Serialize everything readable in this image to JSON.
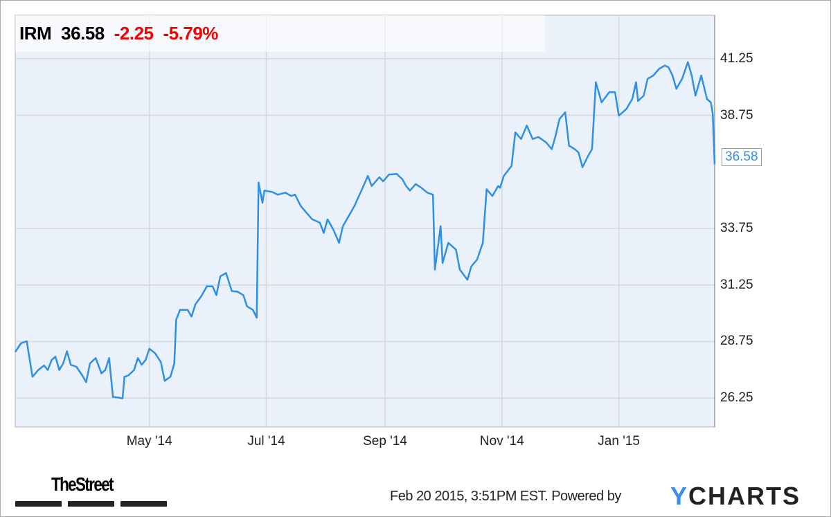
{
  "header": {
    "ticker": "IRM",
    "price": "36.58",
    "change": "-2.25",
    "change_pct": "-5.79%"
  },
  "footer": {
    "timestamp": "Feb 20 2015, 3:51PM EST.",
    "powered_by": "Powered by",
    "brand_logo": "YCHARTS",
    "publisher_logo": "TheStreet"
  },
  "colors": {
    "line": "#2d8fe6",
    "negative": "#f40000",
    "plot_bg": "#eaf1fb"
  },
  "chart_data": {
    "type": "line",
    "title": "",
    "xlabel": "",
    "ylabel": "",
    "grid": true,
    "xlim": [
      "2014-02-20",
      "2015-02-20"
    ],
    "ylim": [
      24.97,
      43.17
    ],
    "x_ticks": [
      {
        "date": "2014-05-01",
        "label": "May '14"
      },
      {
        "date": "2014-07-01",
        "label": "Jul '14"
      },
      {
        "date": "2014-09-01",
        "label": "Sep '14"
      },
      {
        "date": "2014-11-01",
        "label": "Nov '14"
      },
      {
        "date": "2015-01-01",
        "label": "Jan '15"
      }
    ],
    "y_ticks": [
      "41.25",
      "38.75",
      "33.75",
      "31.25",
      "28.75",
      "26.25"
    ],
    "last_value_label": "36.58",
    "series": [
      {
        "points": [
          [
            "2014-02-20",
            28.29
          ],
          [
            "2014-02-23",
            28.67
          ],
          [
            "2014-02-26",
            28.76
          ],
          [
            "2014-03-01",
            27.19
          ],
          [
            "2014-03-04",
            27.49
          ],
          [
            "2014-03-07",
            27.69
          ],
          [
            "2014-03-09",
            27.49
          ],
          [
            "2014-03-11",
            27.93
          ],
          [
            "2014-03-13",
            28.08
          ],
          [
            "2014-03-15",
            27.49
          ],
          [
            "2014-03-17",
            27.78
          ],
          [
            "2014-03-19",
            28.32
          ],
          [
            "2014-03-21",
            27.72
          ],
          [
            "2014-03-24",
            27.63
          ],
          [
            "2014-03-27",
            27.25
          ],
          [
            "2014-03-29",
            26.95
          ],
          [
            "2014-03-31",
            27.78
          ],
          [
            "2014-04-03",
            28.02
          ],
          [
            "2014-04-06",
            27.34
          ],
          [
            "2014-04-08",
            27.49
          ],
          [
            "2014-04-10",
            28.02
          ],
          [
            "2014-04-12",
            26.3
          ],
          [
            "2014-04-15",
            26.27
          ],
          [
            "2014-04-17",
            26.24
          ],
          [
            "2014-04-18",
            27.19
          ],
          [
            "2014-04-20",
            27.25
          ],
          [
            "2014-04-23",
            27.49
          ],
          [
            "2014-04-25",
            28.02
          ],
          [
            "2014-04-27",
            27.72
          ],
          [
            "2014-04-29",
            27.93
          ],
          [
            "2014-05-01",
            28.43
          ],
          [
            "2014-05-04",
            28.23
          ],
          [
            "2014-05-07",
            27.84
          ],
          [
            "2014-05-09",
            27.01
          ],
          [
            "2014-05-12",
            27.19
          ],
          [
            "2014-05-14",
            27.78
          ],
          [
            "2014-05-15",
            29.71
          ],
          [
            "2014-05-17",
            30.15
          ],
          [
            "2014-05-21",
            30.15
          ],
          [
            "2014-05-23",
            29.85
          ],
          [
            "2014-05-25",
            30.39
          ],
          [
            "2014-05-28",
            30.74
          ],
          [
            "2014-05-31",
            31.19
          ],
          [
            "2014-06-03",
            31.19
          ],
          [
            "2014-06-05",
            30.8
          ],
          [
            "2014-06-07",
            31.63
          ],
          [
            "2014-06-10",
            31.78
          ],
          [
            "2014-06-13",
            30.98
          ],
          [
            "2014-06-16",
            30.95
          ],
          [
            "2014-06-19",
            30.8
          ],
          [
            "2014-06-21",
            30.3
          ],
          [
            "2014-06-24",
            30.15
          ],
          [
            "2014-06-26",
            29.8
          ],
          [
            "2014-06-27",
            35.77
          ],
          [
            "2014-06-29",
            34.88
          ],
          [
            "2014-06-30",
            35.42
          ],
          [
            "2014-07-04",
            35.36
          ],
          [
            "2014-07-07",
            35.24
          ],
          [
            "2014-07-11",
            35.33
          ],
          [
            "2014-07-14",
            35.18
          ],
          [
            "2014-07-16",
            35.24
          ],
          [
            "2014-07-19",
            34.74
          ],
          [
            "2014-07-22",
            34.44
          ],
          [
            "2014-07-25",
            34.15
          ],
          [
            "2014-07-29",
            34.0
          ],
          [
            "2014-07-31",
            33.55
          ],
          [
            "2014-08-02",
            34.15
          ],
          [
            "2014-08-05",
            33.7
          ],
          [
            "2014-08-08",
            33.11
          ],
          [
            "2014-08-10",
            33.85
          ],
          [
            "2014-08-13",
            34.29
          ],
          [
            "2014-08-16",
            34.74
          ],
          [
            "2014-08-20",
            35.48
          ],
          [
            "2014-08-23",
            36.07
          ],
          [
            "2014-08-25",
            35.62
          ],
          [
            "2014-08-29",
            36.01
          ],
          [
            "2014-08-31",
            35.83
          ],
          [
            "2014-09-03",
            36.13
          ],
          [
            "2014-09-07",
            36.16
          ],
          [
            "2014-09-10",
            35.92
          ],
          [
            "2014-09-12",
            35.62
          ],
          [
            "2014-09-14",
            35.42
          ],
          [
            "2014-09-17",
            35.71
          ],
          [
            "2014-09-20",
            35.54
          ],
          [
            "2014-09-23",
            35.33
          ],
          [
            "2014-09-26",
            35.24
          ],
          [
            "2014-09-27",
            31.93
          ],
          [
            "2014-09-30",
            33.85
          ],
          [
            "2014-10-01",
            32.22
          ],
          [
            "2014-10-04",
            33.11
          ],
          [
            "2014-10-06",
            32.96
          ],
          [
            "2014-10-08",
            32.81
          ],
          [
            "2014-10-10",
            31.93
          ],
          [
            "2014-10-14",
            31.48
          ],
          [
            "2014-10-16",
            32.07
          ],
          [
            "2014-10-19",
            32.37
          ],
          [
            "2014-10-22",
            33.11
          ],
          [
            "2014-10-24",
            35.48
          ],
          [
            "2014-10-27",
            35.18
          ],
          [
            "2014-10-30",
            35.62
          ],
          [
            "2014-10-31",
            35.54
          ],
          [
            "2014-11-02",
            36.07
          ],
          [
            "2014-11-06",
            36.51
          ],
          [
            "2014-11-08",
            37.99
          ],
          [
            "2014-11-11",
            37.7
          ],
          [
            "2014-11-14",
            38.29
          ],
          [
            "2014-11-17",
            37.7
          ],
          [
            "2014-11-20",
            37.79
          ],
          [
            "2014-11-24",
            37.55
          ],
          [
            "2014-11-27",
            37.25
          ],
          [
            "2014-11-29",
            37.84
          ],
          [
            "2014-12-01",
            38.58
          ],
          [
            "2014-12-04",
            38.88
          ],
          [
            "2014-12-06",
            37.4
          ],
          [
            "2014-12-09",
            37.25
          ],
          [
            "2014-12-11",
            37.1
          ],
          [
            "2014-12-13",
            36.45
          ],
          [
            "2014-12-16",
            36.96
          ],
          [
            "2014-12-18",
            37.25
          ],
          [
            "2014-12-20",
            40.21
          ],
          [
            "2014-12-23",
            39.32
          ],
          [
            "2014-12-27",
            39.77
          ],
          [
            "2014-12-30",
            39.77
          ],
          [
            "2015-01-01",
            38.73
          ],
          [
            "2015-01-05",
            39.03
          ],
          [
            "2015-01-08",
            39.47
          ],
          [
            "2015-01-10",
            40.21
          ],
          [
            "2015-01-11",
            39.38
          ],
          [
            "2015-01-14",
            39.62
          ],
          [
            "2015-01-16",
            40.36
          ],
          [
            "2015-01-19",
            40.51
          ],
          [
            "2015-01-22",
            40.8
          ],
          [
            "2015-01-25",
            40.95
          ],
          [
            "2015-01-27",
            40.86
          ],
          [
            "2015-01-29",
            40.51
          ],
          [
            "2015-01-31",
            39.92
          ],
          [
            "2015-02-03",
            40.36
          ],
          [
            "2015-02-06",
            41.1
          ],
          [
            "2015-02-08",
            40.51
          ],
          [
            "2015-02-10",
            39.62
          ],
          [
            "2015-02-13",
            40.51
          ],
          [
            "2015-02-16",
            39.47
          ],
          [
            "2015-02-18",
            39.32
          ],
          [
            "2015-02-19",
            38.83
          ],
          [
            "2015-02-20",
            36.58
          ]
        ]
      }
    ]
  }
}
